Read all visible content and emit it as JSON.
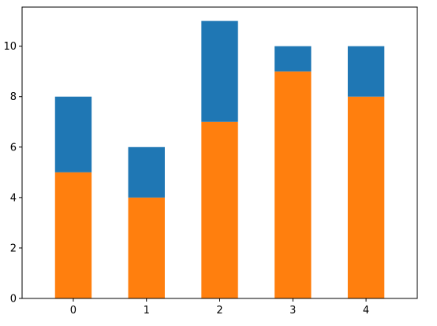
{
  "chart_data": {
    "type": "bar",
    "stacked": true,
    "categories": [
      "0",
      "1",
      "2",
      "3",
      "4"
    ],
    "series": [
      {
        "values": [
          5,
          4,
          7,
          9,
          8
        ],
        "color": "#ff7f0e"
      },
      {
        "values": [
          3,
          2,
          4,
          1,
          2
        ],
        "color": "#1f77b4"
      }
    ],
    "title": "",
    "xlabel": "",
    "ylabel": "",
    "ylim": [
      0,
      11.55
    ],
    "yticks": [
      "0",
      "2",
      "4",
      "6",
      "8",
      "10"
    ],
    "grid": false,
    "legend": false
  }
}
